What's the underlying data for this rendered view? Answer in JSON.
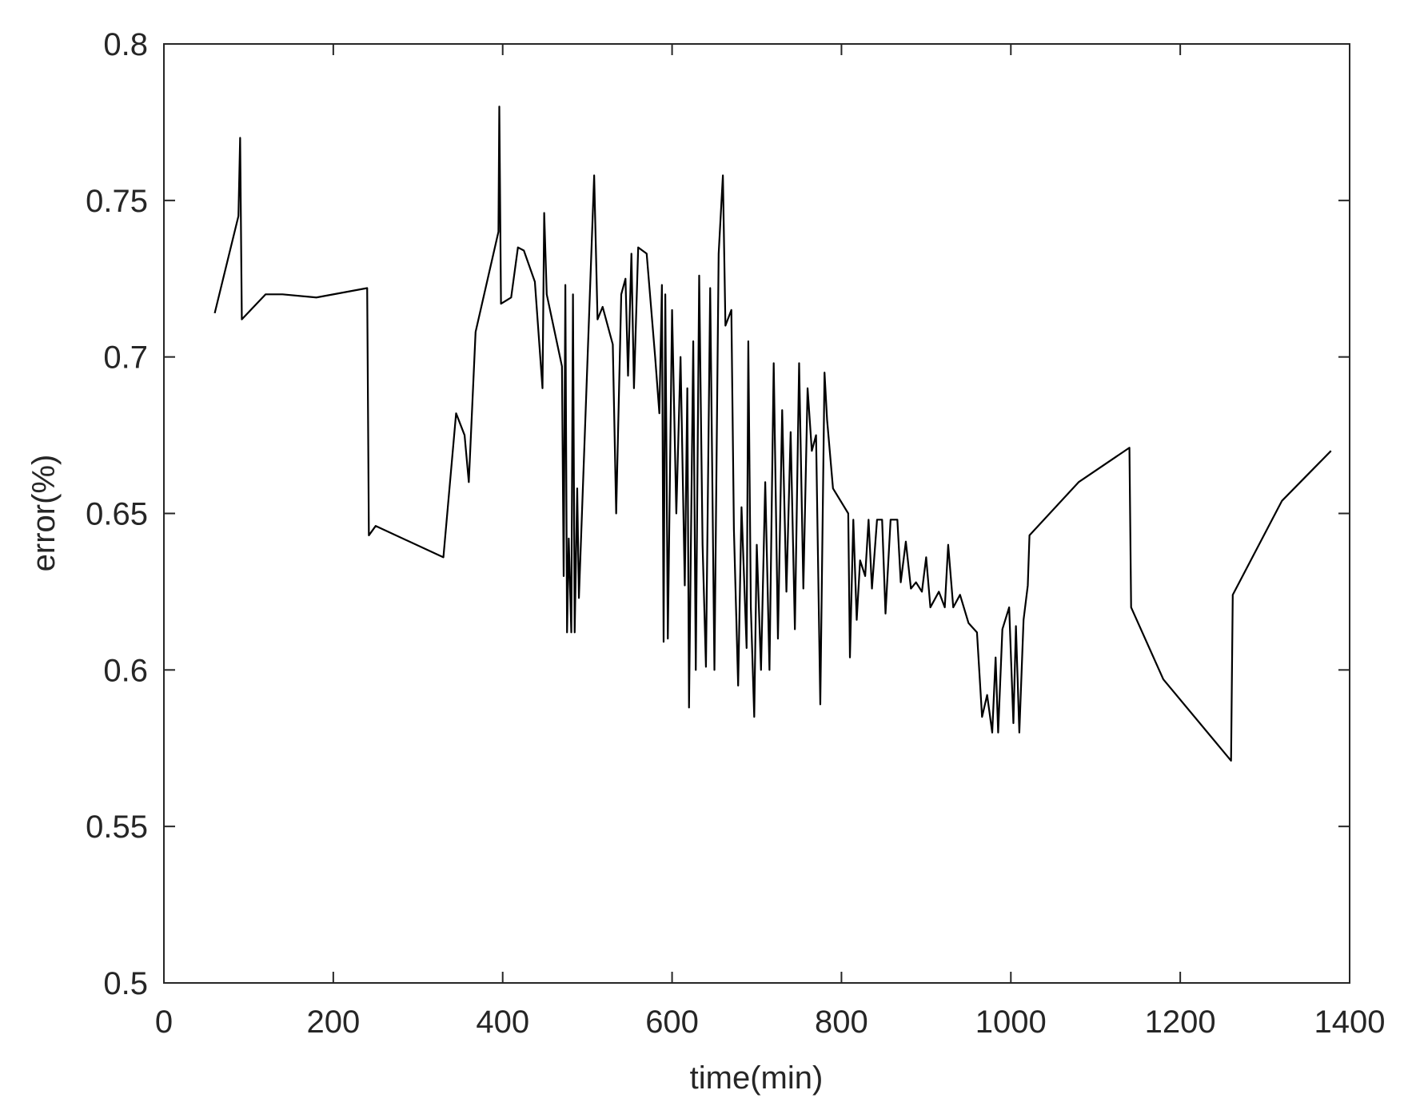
{
  "chart_data": {
    "type": "line",
    "xlabel": "time(min)",
    "ylabel": "error(%)",
    "color": "#000000",
    "xlim": [
      0,
      1400
    ],
    "xticks": [
      0,
      200,
      400,
      600,
      800,
      1000,
      1200,
      1400
    ],
    "ylim": [
      0.5,
      0.8
    ],
    "yticks": [
      0.5,
      0.55,
      0.6,
      0.65,
      0.7,
      0.75,
      0.8
    ],
    "x": [
      60,
      88,
      90,
      92,
      120,
      140,
      180,
      240,
      242,
      250,
      330,
      345,
      355,
      360,
      368,
      395,
      396,
      398,
      410,
      418,
      425,
      438,
      447,
      449,
      452,
      470,
      472,
      474,
      476,
      478,
      481,
      483,
      485,
      488,
      490,
      508,
      512,
      518,
      530,
      534,
      540,
      545,
      548,
      552,
      555,
      560,
      570,
      580,
      585,
      588,
      590,
      592,
      595,
      600,
      605,
      610,
      615,
      618,
      620,
      625,
      628,
      632,
      636,
      640,
      645,
      650,
      655,
      660,
      663,
      670,
      673,
      678,
      682,
      688,
      690,
      693,
      697,
      700,
      705,
      710,
      715,
      720,
      725,
      730,
      735,
      740,
      745,
      750,
      755,
      760,
      765,
      770,
      775,
      780,
      783,
      790,
      808,
      810,
      814,
      818,
      822,
      828,
      832,
      836,
      842,
      848,
      852,
      858,
      866,
      870,
      876,
      882,
      888,
      895,
      900,
      905,
      915,
      922,
      926,
      932,
      940,
      950,
      960,
      966,
      972,
      978,
      982,
      985,
      990,
      998,
      1003,
      1006,
      1010,
      1015,
      1020,
      1022,
      1080,
      1140,
      1142,
      1180,
      1260,
      1262,
      1320,
      1378
    ],
    "values": [
      0.714,
      0.745,
      0.77,
      0.712,
      0.72,
      0.72,
      0.719,
      0.722,
      0.643,
      0.646,
      0.636,
      0.682,
      0.675,
      0.66,
      0.708,
      0.74,
      0.78,
      0.717,
      0.719,
      0.735,
      0.734,
      0.724,
      0.69,
      0.746,
      0.72,
      0.697,
      0.63,
      0.723,
      0.612,
      0.642,
      0.612,
      0.72,
      0.612,
      0.658,
      0.623,
      0.758,
      0.712,
      0.716,
      0.704,
      0.65,
      0.72,
      0.725,
      0.694,
      0.733,
      0.69,
      0.735,
      0.733,
      0.7,
      0.682,
      0.723,
      0.609,
      0.72,
      0.61,
      0.715,
      0.65,
      0.7,
      0.627,
      0.69,
      0.588,
      0.705,
      0.6,
      0.726,
      0.64,
      0.601,
      0.722,
      0.6,
      0.733,
      0.758,
      0.71,
      0.715,
      0.645,
      0.595,
      0.652,
      0.607,
      0.705,
      0.62,
      0.585,
      0.64,
      0.6,
      0.66,
      0.6,
      0.698,
      0.61,
      0.683,
      0.625,
      0.676,
      0.613,
      0.698,
      0.626,
      0.69,
      0.67,
      0.675,
      0.589,
      0.695,
      0.68,
      0.658,
      0.65,
      0.604,
      0.648,
      0.616,
      0.635,
      0.63,
      0.648,
      0.626,
      0.648,
      0.648,
      0.618,
      0.648,
      0.648,
      0.628,
      0.641,
      0.626,
      0.628,
      0.625,
      0.636,
      0.62,
      0.625,
      0.62,
      0.64,
      0.62,
      0.624,
      0.615,
      0.612,
      0.585,
      0.592,
      0.58,
      0.604,
      0.58,
      0.613,
      0.62,
      0.583,
      0.614,
      0.58,
      0.616,
      0.627,
      0.643,
      0.66,
      0.671,
      0.62,
      0.597,
      0.571,
      0.624,
      0.654,
      0.67
    ]
  }
}
